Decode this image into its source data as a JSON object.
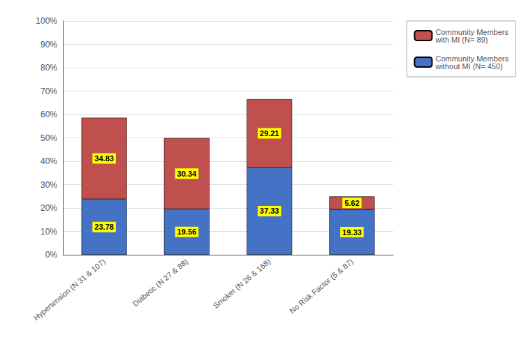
{
  "chart_data": {
    "type": "bar",
    "stacked": true,
    "data_labels": true,
    "grid": true,
    "legend": "right",
    "categories": [
      "Hypertension (N 31 & 107)",
      "Diabetic (N 27 & 88)",
      "Smoker (N 26 & 168)",
      "No Risk Factor (5 & 87)"
    ],
    "series": [
      {
        "name": "Community Members\nwithout MI (N= 450)",
        "color": "#4472C4",
        "values": [
          23.78,
          19.56,
          37.33,
          19.33
        ]
      },
      {
        "name": "Community Members\nwith MI (N= 89)",
        "color": "#C0504D",
        "values": [
          34.83,
          30.34,
          29.21,
          5.62
        ]
      }
    ],
    "ylim": [
      0,
      100
    ],
    "yticks": [
      {
        "value": 0,
        "label": "0%"
      },
      {
        "value": 10,
        "label": "10%"
      },
      {
        "value": 20,
        "label": "20%"
      },
      {
        "value": 30,
        "label": "30%"
      },
      {
        "value": 40,
        "label": "40%"
      },
      {
        "value": 50,
        "label": "50%"
      },
      {
        "value": 60,
        "label": "60%"
      },
      {
        "value": 70,
        "label": "70%"
      },
      {
        "value": 80,
        "label": "80%"
      },
      {
        "value": 90,
        "label": "90%"
      },
      {
        "value": 100,
        "label": "100%"
      }
    ]
  }
}
